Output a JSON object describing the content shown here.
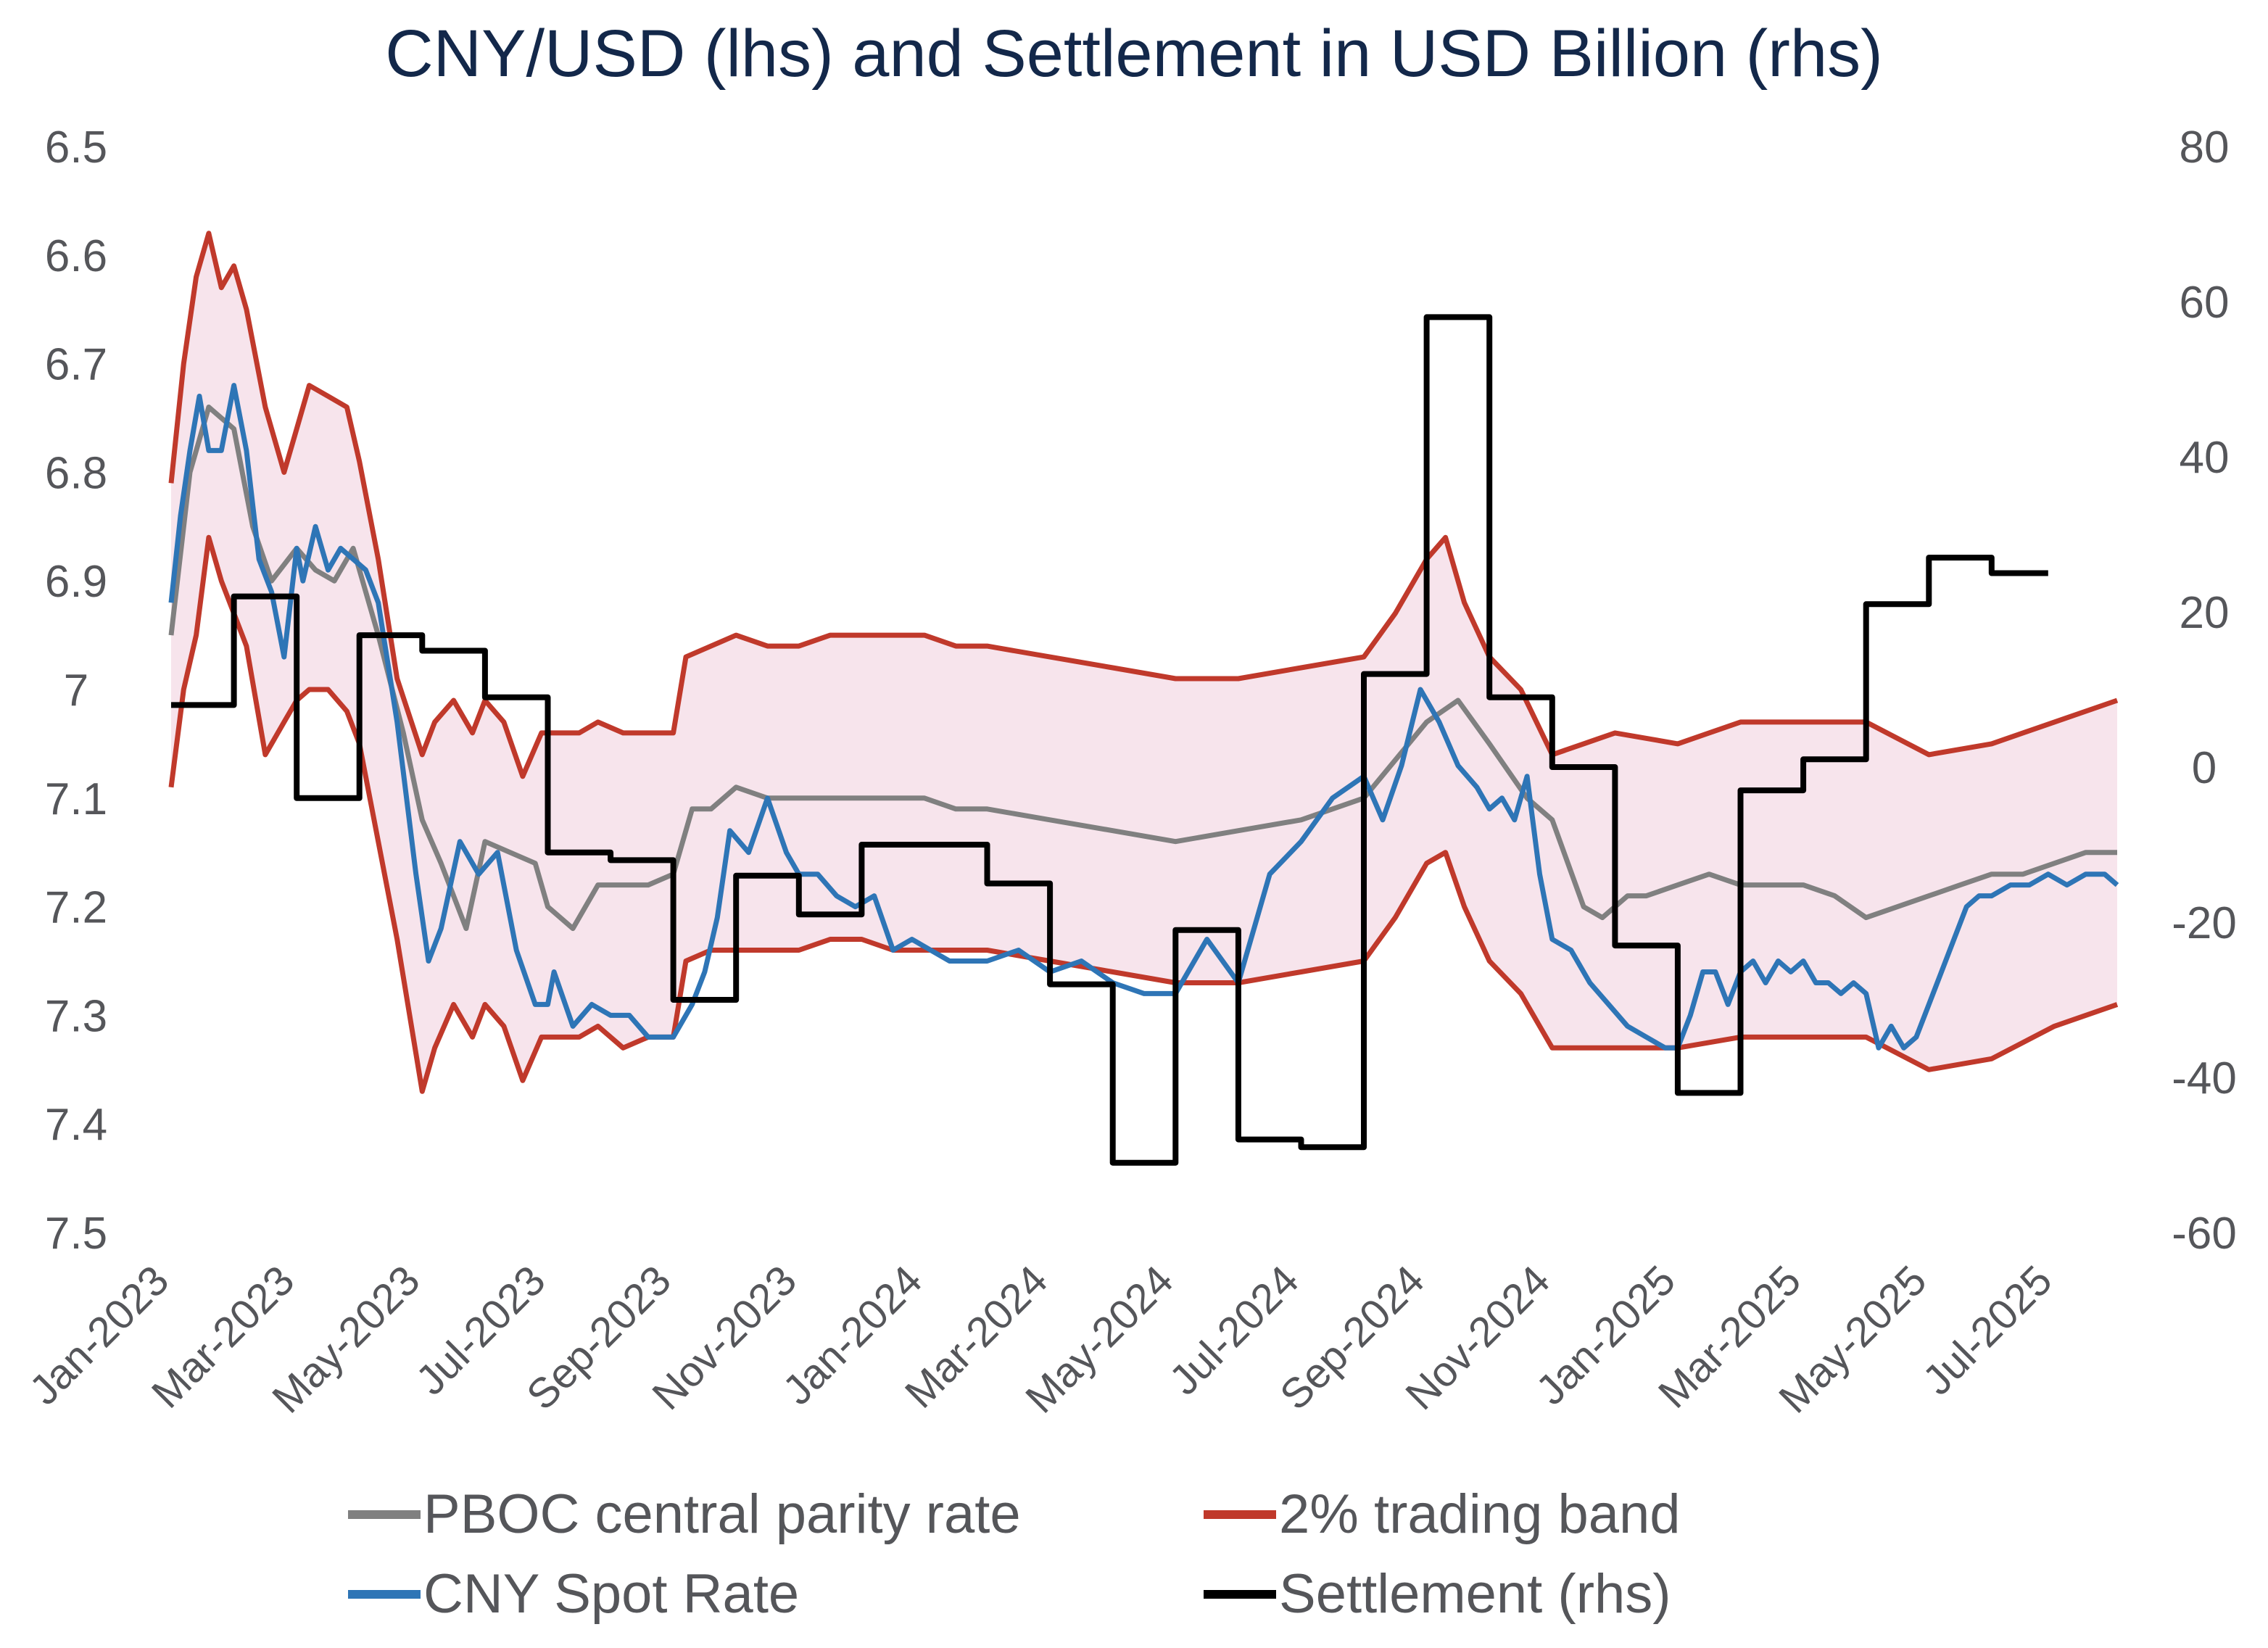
{
  "chart_data": {
    "type": "line",
    "title": "CNY/USD (lhs) and Settlement in USD Billion (rhs)",
    "x_tick_labels": [
      "Jan-2023",
      "Mar-2023",
      "May-2023",
      "Jul-2023",
      "Sep-2023",
      "Nov-2023",
      "Jan-2024",
      "Mar-2024",
      "May-2024",
      "Jul-2024",
      "Sep-2024",
      "Nov-2024",
      "Jan-2025",
      "Mar-2025",
      "May-2025",
      "Jul-2025"
    ],
    "x_range_months": [
      0,
      31
    ],
    "y_left": {
      "tick_labels": [
        "6.5",
        "6.6",
        "6.7",
        "6.8",
        "6.9",
        "7",
        "7.1",
        "7.2",
        "7.3",
        "7.4",
        "7.5"
      ],
      "range": [
        6.5,
        7.5
      ],
      "inverted": true
    },
    "y_right": {
      "tick_labels": [
        "80",
        "60",
        "40",
        "20",
        "0",
        "-20",
        "-40",
        "-60"
      ],
      "range": [
        -60,
        80
      ]
    },
    "grid": false,
    "legend_placement": "bottom",
    "legend": [
      "PBOC central parity rate",
      "2% trading band",
      "CNY Spot Rate",
      "Settlement (rhs)"
    ],
    "colors": {
      "parity": "#808080",
      "band": "#c0392b",
      "band_fill": "#f7e4ec",
      "spot": "#2e75b6",
      "settlement": "#000000"
    },
    "series": [
      {
        "key": "parity",
        "x": [
          0,
          0.3,
          0.6,
          1.0,
          1.3,
          1.6,
          2.0,
          2.3,
          2.6,
          2.9,
          3.3,
          3.7,
          4.0,
          4.3,
          4.7,
          5.0,
          5.4,
          5.8,
          6.0,
          6.4,
          6.8,
          7.2,
          7.6,
          8.0,
          8.3,
          8.6,
          9.0,
          9.5,
          10,
          10.5,
          11,
          11.5,
          12,
          12.5,
          13,
          14,
          15,
          16,
          17,
          18,
          19,
          20,
          20.5,
          21,
          21.6,
          22,
          22.5,
          22.8,
          23.2,
          23.5,
          24,
          24.5,
          25,
          25.5,
          26,
          26.5,
          27,
          27.5,
          28,
          28.5,
          29,
          29.5,
          30,
          30.5,
          31
        ],
        "y": [
          6.95,
          6.8,
          6.74,
          6.76,
          6.85,
          6.9,
          6.87,
          6.89,
          6.9,
          6.87,
          6.95,
          7.04,
          7.12,
          7.16,
          7.22,
          7.14,
          7.15,
          7.16,
          7.2,
          7.22,
          7.18,
          7.18,
          7.18,
          7.17,
          7.11,
          7.11,
          7.09,
          7.1,
          7.1,
          7.1,
          7.1,
          7.1,
          7.1,
          7.11,
          7.11,
          7.12,
          7.13,
          7.14,
          7.13,
          7.12,
          7.1,
          7.03,
          7.01,
          7.05,
          7.1,
          7.12,
          7.2,
          7.21,
          7.19,
          7.19,
          7.18,
          7.17,
          7.18,
          7.18,
          7.18,
          7.19,
          7.21,
          7.2,
          7.19,
          7.18,
          7.17,
          7.17,
          7.16,
          7.15,
          7.15
        ]
      },
      {
        "key": "band_upper",
        "x": [
          0,
          0.2,
          0.4,
          0.6,
          0.8,
          1.0,
          1.2,
          1.5,
          1.8,
          2.0,
          2.2,
          2.5,
          2.8,
          3.0,
          3.3,
          3.6,
          4.0,
          4.2,
          4.5,
          4.8,
          5.0,
          5.3,
          5.6,
          5.9,
          6.2,
          6.5,
          6.8,
          7.2,
          7.6,
          8.0,
          8.2,
          8.6,
          9.0,
          9.5,
          10,
          10.5,
          11,
          11.5,
          12,
          12.5,
          13,
          14,
          15,
          16,
          17,
          18,
          19,
          19.5,
          20,
          20.3,
          20.6,
          21,
          21.5,
          22,
          22.5,
          23,
          24,
          25,
          26,
          27,
          28,
          29,
          30,
          31
        ],
        "y": [
          6.81,
          6.7,
          6.62,
          6.58,
          6.63,
          6.61,
          6.65,
          6.74,
          6.8,
          6.76,
          6.72,
          6.73,
          6.74,
          6.79,
          6.88,
          6.99,
          7.06,
          7.03,
          7.01,
          7.04,
          7.01,
          7.03,
          7.08,
          7.04,
          7.04,
          7.04,
          7.03,
          7.04,
          7.04,
          7.04,
          6.97,
          6.96,
          6.95,
          6.96,
          6.96,
          6.95,
          6.95,
          6.95,
          6.95,
          6.96,
          6.96,
          6.97,
          6.98,
          6.99,
          6.99,
          6.98,
          6.97,
          6.93,
          6.88,
          6.86,
          6.92,
          6.97,
          7.0,
          7.06,
          7.05,
          7.04,
          7.05,
          7.03,
          7.03,
          7.03,
          7.06,
          7.05,
          7.03,
          7.01
        ]
      },
      {
        "key": "band_lower",
        "x": [
          0,
          0.2,
          0.4,
          0.6,
          0.8,
          1.0,
          1.2,
          1.5,
          1.8,
          2.0,
          2.2,
          2.5,
          2.8,
          3.0,
          3.3,
          3.6,
          4.0,
          4.2,
          4.5,
          4.8,
          5.0,
          5.3,
          5.6,
          5.9,
          6.2,
          6.5,
          6.8,
          7.2,
          7.6,
          8.0,
          8.2,
          8.6,
          9.0,
          9.5,
          10,
          10.5,
          11,
          11.5,
          12,
          12.5,
          13,
          14,
          15,
          16,
          17,
          18,
          19,
          19.5,
          20,
          20.3,
          20.6,
          21,
          21.5,
          22,
          22.5,
          23,
          24,
          25,
          26,
          27,
          28,
          29,
          30,
          31
        ],
        "y": [
          7.09,
          7.0,
          6.95,
          6.86,
          6.9,
          6.93,
          6.96,
          7.06,
          7.03,
          7.01,
          7.0,
          7.0,
          7.02,
          7.05,
          7.14,
          7.23,
          7.37,
          7.33,
          7.29,
          7.32,
          7.29,
          7.31,
          7.36,
          7.32,
          7.32,
          7.32,
          7.31,
          7.33,
          7.32,
          7.32,
          7.25,
          7.24,
          7.24,
          7.24,
          7.24,
          7.23,
          7.23,
          7.24,
          7.24,
          7.24,
          7.24,
          7.25,
          7.26,
          7.27,
          7.27,
          7.26,
          7.25,
          7.21,
          7.16,
          7.15,
          7.2,
          7.25,
          7.28,
          7.33,
          7.33,
          7.33,
          7.33,
          7.32,
          7.32,
          7.32,
          7.35,
          7.34,
          7.31,
          7.29
        ]
      },
      {
        "key": "spot",
        "x": [
          0,
          0.15,
          0.3,
          0.45,
          0.6,
          0.8,
          1.0,
          1.2,
          1.4,
          1.6,
          1.8,
          2.0,
          2.1,
          2.3,
          2.5,
          2.7,
          2.9,
          3.1,
          3.3,
          3.6,
          3.9,
          4.1,
          4.3,
          4.6,
          4.9,
          5.2,
          5.5,
          5.8,
          6.0,
          6.1,
          6.4,
          6.7,
          7.0,
          7.3,
          7.6,
          8.0,
          8.3,
          8.5,
          8.7,
          8.9,
          9.2,
          9.5,
          9.8,
          10,
          10.3,
          10.6,
          10.9,
          11.2,
          11.5,
          11.8,
          12.1,
          12.4,
          12.7,
          13,
          13.5,
          14,
          14.5,
          15,
          15.5,
          16,
          16.5,
          17,
          17.5,
          18,
          18.5,
          19,
          19.3,
          19.6,
          19.9,
          20.2,
          20.5,
          20.8,
          21,
          21.2,
          21.4,
          21.6,
          21.8,
          22,
          22.3,
          22.6,
          22.9,
          23.2,
          23.5,
          23.8,
          24.0,
          24.2,
          24.4,
          24.6,
          24.8,
          25,
          25.2,
          25.4,
          25.6,
          25.8,
          26,
          26.2,
          26.4,
          26.6,
          26.8,
          27,
          27.2,
          27.4,
          27.6,
          27.8,
          28,
          28.2,
          28.4,
          28.6,
          28.8,
          29,
          29.3,
          29.6,
          29.9,
          30.2,
          30.5,
          30.8,
          31
        ],
        "y": [
          6.92,
          6.84,
          6.78,
          6.73,
          6.78,
          6.78,
          6.72,
          6.78,
          6.88,
          6.91,
          6.97,
          6.87,
          6.9,
          6.85,
          6.89,
          6.87,
          6.88,
          6.89,
          6.92,
          7.03,
          7.17,
          7.25,
          7.22,
          7.14,
          7.17,
          7.15,
          7.24,
          7.29,
          7.29,
          7.26,
          7.31,
          7.29,
          7.3,
          7.3,
          7.32,
          7.32,
          7.29,
          7.26,
          7.21,
          7.13,
          7.15,
          7.1,
          7.15,
          7.17,
          7.17,
          7.19,
          7.2,
          7.19,
          7.24,
          7.23,
          7.24,
          7.25,
          7.25,
          7.25,
          7.24,
          7.26,
          7.25,
          7.27,
          7.28,
          7.28,
          7.23,
          7.27,
          7.17,
          7.14,
          7.1,
          7.08,
          7.12,
          7.07,
          7.0,
          7.03,
          7.07,
          7.09,
          7.11,
          7.1,
          7.12,
          7.08,
          7.17,
          7.23,
          7.24,
          7.27,
          7.29,
          7.31,
          7.32,
          7.33,
          7.33,
          7.3,
          7.26,
          7.26,
          7.29,
          7.26,
          7.25,
          7.27,
          7.25,
          7.26,
          7.25,
          7.27,
          7.27,
          7.28,
          7.27,
          7.28,
          7.33,
          7.31,
          7.33,
          7.32,
          7.29,
          7.26,
          7.23,
          7.2,
          7.19,
          7.19,
          7.18,
          7.18,
          7.17,
          7.18,
          7.17,
          7.17,
          7.18
        ]
      },
      {
        "key": "settlement",
        "step": true,
        "x": [
          0,
          1,
          2,
          3,
          4,
          5,
          6,
          7,
          8,
          9,
          10,
          11,
          12,
          13,
          14,
          15,
          16,
          17,
          18,
          19,
          20,
          21,
          22,
          23,
          24,
          25,
          26,
          27,
          28,
          29
        ],
        "y": [
          8,
          22,
          -4,
          17,
          15,
          9,
          -11,
          -12,
          -30,
          -14,
          -19,
          -10,
          -10,
          -15,
          -28,
          -51,
          -21,
          -48,
          -49,
          12,
          58,
          9,
          0,
          -23,
          -42,
          -3,
          1,
          21,
          27,
          25
        ]
      }
    ]
  }
}
